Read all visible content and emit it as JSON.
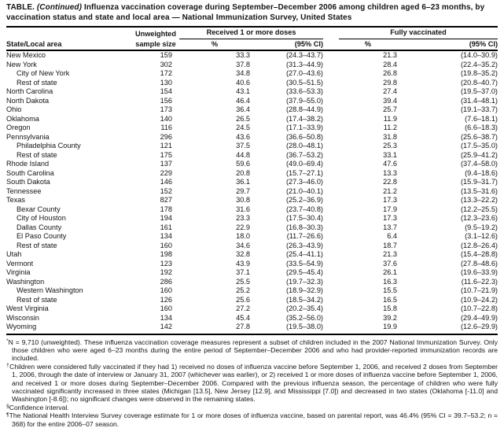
{
  "title": {
    "prefix": "TABLE. ",
    "continued": "(Continued)",
    "rest": " Influenza vaccination coverage during September–December 2006 among children aged 6–23 months, by vaccination status and state and local area — National Immunization Survey, United States"
  },
  "header": {
    "state_col": "State/Local area",
    "sample_col_line1": "Unweighted",
    "sample_col_line2": "sample size",
    "group_dose1": "Received 1 or more doses",
    "group_full": "Fully vaccinated",
    "pct": "%",
    "ci": "(95% CI)"
  },
  "rows": [
    {
      "area": "New Mexico",
      "indent": false,
      "n": "159",
      "p1": "33.3",
      "ci1": "(24.3–43.7)",
      "p2": "21.3",
      "ci2": "(14.0–30.9)"
    },
    {
      "area": "New York",
      "indent": false,
      "n": "302",
      "p1": "37.8",
      "ci1": "(31.3–44.9)",
      "p2": "28.4",
      "ci2": "(22.4–35.2)"
    },
    {
      "area": "City of New York",
      "indent": true,
      "n": "172",
      "p1": "34.8",
      "ci1": "(27.0–43.6)",
      "p2": "26.8",
      "ci2": "(19.8–35.2)"
    },
    {
      "area": "Rest of state",
      "indent": true,
      "n": "130",
      "p1": "40.6",
      "ci1": "(30.5–51.5)",
      "p2": "29.8",
      "ci2": "(20.8–40.7)"
    },
    {
      "area": "North Carolina",
      "indent": false,
      "n": "154",
      "p1": "43.1",
      "ci1": "(33.6–53.3)",
      "p2": "27.4",
      "ci2": "(19.5–37.0)"
    },
    {
      "area": "North Dakota",
      "indent": false,
      "n": "156",
      "p1": "46.4",
      "ci1": "(37.9–55.0)",
      "p2": "39.4",
      "ci2": "(31.4–48.1)"
    },
    {
      "area": "Ohio",
      "indent": false,
      "n": "173",
      "p1": "36.4",
      "ci1": "(28.8–44.9)",
      "p2": "25.7",
      "ci2": "(19.1–33.7)"
    },
    {
      "area": "Oklahoma",
      "indent": false,
      "n": "140",
      "p1": "26.5",
      "ci1": "(17.4–38.2)",
      "p2": "11.9",
      "ci2": "(7.6–18.1)"
    },
    {
      "area": "Oregon",
      "indent": false,
      "n": "116",
      "p1": "24.5",
      "ci1": "(17.1–33.9)",
      "p2": "11.2",
      "ci2": "(6.6–18.3)"
    },
    {
      "area": "Pennsylvania",
      "indent": false,
      "n": "296",
      "p1": "43.6",
      "ci1": "(36.6–50.8)",
      "p2": "31.8",
      "ci2": "(25.6–38.7)"
    },
    {
      "area": "Philadelphia County",
      "indent": true,
      "n": "121",
      "p1": "37.5",
      "ci1": "(28.0–48.1)",
      "p2": "25.3",
      "ci2": "(17.5–35.0)"
    },
    {
      "area": "Rest of state",
      "indent": true,
      "n": "175",
      "p1": "44.8",
      "ci1": "(36.7–53.2)",
      "p2": "33.1",
      "ci2": "(25.9–41.2)"
    },
    {
      "area": "Rhode Island",
      "indent": false,
      "n": "137",
      "p1": "59.6",
      "ci1": "(49.0–69.4)",
      "p2": "47.6",
      "ci2": "(37.4–58.0)"
    },
    {
      "area": "South Carolina",
      "indent": false,
      "n": "229",
      "p1": "20.8",
      "ci1": "(15.7–27.1)",
      "p2": "13.3",
      "ci2": "(9.4–18.6)"
    },
    {
      "area": "South Dakota",
      "indent": false,
      "n": "146",
      "p1": "36.1",
      "ci1": "(27.3–46.0)",
      "p2": "22.8",
      "ci2": "(15.9–31.7)"
    },
    {
      "area": "Tennessee",
      "indent": false,
      "n": "152",
      "p1": "29.7",
      "ci1": "(21.0–40.1)",
      "p2": "21.2",
      "ci2": "(13.5–31.6)"
    },
    {
      "area": "Texas",
      "indent": false,
      "n": "827",
      "p1": "30.8",
      "ci1": "(25.2–36.9)",
      "p2": "17.3",
      "ci2": "(13.3–22.2)"
    },
    {
      "area": "Bexar County",
      "indent": true,
      "n": "178",
      "p1": "31.6",
      "ci1": "(23.7–40.8)",
      "p2": "17.9",
      "ci2": "(12.2–25.5)"
    },
    {
      "area": "City of Houston",
      "indent": true,
      "n": "194",
      "p1": "23.3",
      "ci1": "(17.5–30.4)",
      "p2": "17.3",
      "ci2": "(12.3–23.6)"
    },
    {
      "area": "Dallas County",
      "indent": true,
      "n": "161",
      "p1": "22.9",
      "ci1": "(16.8–30.3)",
      "p2": "13.7",
      "ci2": "(9.5–19.2)"
    },
    {
      "area": "El Paso County",
      "indent": true,
      "n": "134",
      "p1": "18.0",
      "ci1": "(11.7–26.6)",
      "p2": "6.4",
      "ci2": "(3.1–12.6)"
    },
    {
      "area": "Rest of state",
      "indent": true,
      "n": "160",
      "p1": "34.6",
      "ci1": "(26.3–43.9)",
      "p2": "18.7",
      "ci2": "(12.8–26.4)"
    },
    {
      "area": "Utah",
      "indent": false,
      "n": "198",
      "p1": "32.8",
      "ci1": "(25.4–41.1)",
      "p2": "21.3",
      "ci2": "(15.4–28.8)"
    },
    {
      "area": "Vermont",
      "indent": false,
      "n": "123",
      "p1": "43.9",
      "ci1": "(33.5–54.9)",
      "p2": "37.6",
      "ci2": "(27.8–48.6)"
    },
    {
      "area": "Virginia",
      "indent": false,
      "n": "192",
      "p1": "37.1",
      "ci1": "(29.5–45.4)",
      "p2": "26.1",
      "ci2": "(19.6–33.9)"
    },
    {
      "area": "Washington",
      "indent": false,
      "n": "286",
      "p1": "25.5",
      "ci1": "(19.7–32.3)",
      "p2": "16.3",
      "ci2": "(11.6–22.3)"
    },
    {
      "area": "Western Washington",
      "indent": true,
      "n": "160",
      "p1": "25.2",
      "ci1": "(18.9–32.9)",
      "p2": "15.5",
      "ci2": "(10.7–21.9)"
    },
    {
      "area": "Rest of state",
      "indent": true,
      "n": "126",
      "p1": "25.6",
      "ci1": "(18.5–34.2)",
      "p2": "16.5",
      "ci2": "(10.9–24.2)"
    },
    {
      "area": "West Virginia",
      "indent": false,
      "n": "160",
      "p1": "27.2",
      "ci1": "(20.2–35.4)",
      "p2": "15.8",
      "ci2": "(10.7–22.8)"
    },
    {
      "area": "Wisconsin",
      "indent": false,
      "n": "134",
      "p1": "45.4",
      "ci1": "(35.2–56.0)",
      "p2": "39.2",
      "ci2": "(29.4–49.9)"
    },
    {
      "area": "Wyoming",
      "indent": false,
      "n": "142",
      "p1": "27.8",
      "ci1": "(19.5–38.0)",
      "p2": "19.9",
      "ci2": "(12.6–29.9)"
    }
  ],
  "footnotes": [
    {
      "marker": "*",
      "text": "N = 9,710 (unweighted). These influenza vaccination coverage measures represent a subset of children included in the 2007 National Immunization Survey. Only those children who were aged 6–23 months during the entire period of September–December 2006 and who had provider-reported immunization records are included."
    },
    {
      "marker": "†",
      "text": "Children were considered fully vaccinated if they had 1) received no doses of influenza vaccine before September 1, 2006, and received 2 doses from September 1, 2006, through the date of interview or January 31, 2007 (whichever was earlier), or 2) received 1 or more doses of influenza vaccine before September 1, 2006, and received 1 or more doses during September–December 2006. Compared with the previous influenza season, the percentage of children who were fully vaccinated significantly increased in three states (Michigan [13.5], New Jersey [12.9], and Mississippi [7.0]) and decreased in two states (Oklahoma [-11.0] and Washington [-8.6]); no significant changes were observed in the remaining states."
    },
    {
      "marker": "§",
      "text": "Confidence interval."
    },
    {
      "marker": "¶",
      "text": "The National Health Interview Survey coverage estimate for 1 or more doses of influenza vaccine, based on parental report, was 46.4% (95% CI = 39.7–53.2; n = 368) for the entire 2006–07 season."
    }
  ]
}
